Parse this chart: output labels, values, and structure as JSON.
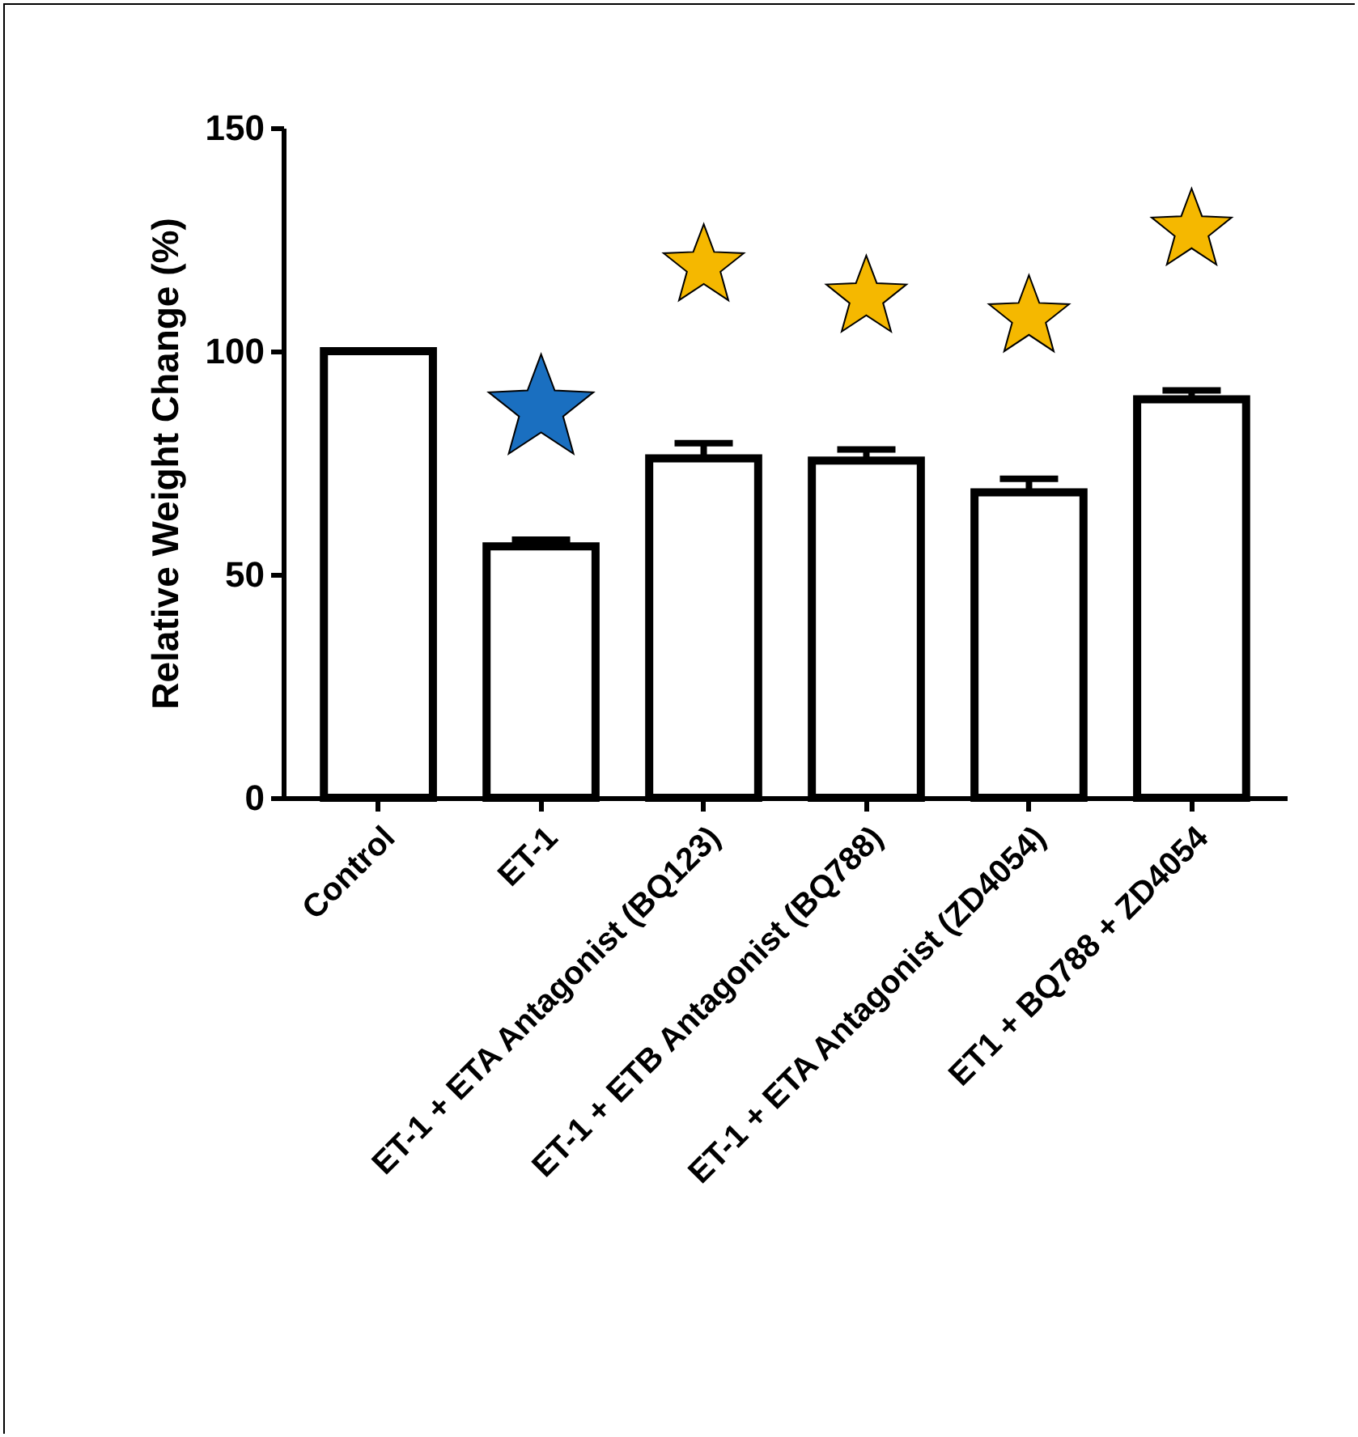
{
  "chart_data": {
    "type": "bar",
    "ylabel": "Relative Weight Change (%)",
    "categories": [
      "Control",
      "ET-1",
      "ET-1 + ETA Antagonist (BQ123)",
      "ET-1 + ETB Antagonist (BQ788)",
      "ET-1 + ETA Antagonist (ZD4054)",
      "ET1 + BQ788 + ZD4054"
    ],
    "values": [
      100,
      56.3,
      76,
      75.5,
      68.4,
      89.2
    ],
    "errors": [
      null,
      1.5,
      3.4,
      2.5,
      3,
      2
    ],
    "color": "#ffffff",
    "ylim": [
      0,
      150
    ],
    "yticks": [
      0,
      50,
      100,
      150
    ],
    "grid": false
  }
}
